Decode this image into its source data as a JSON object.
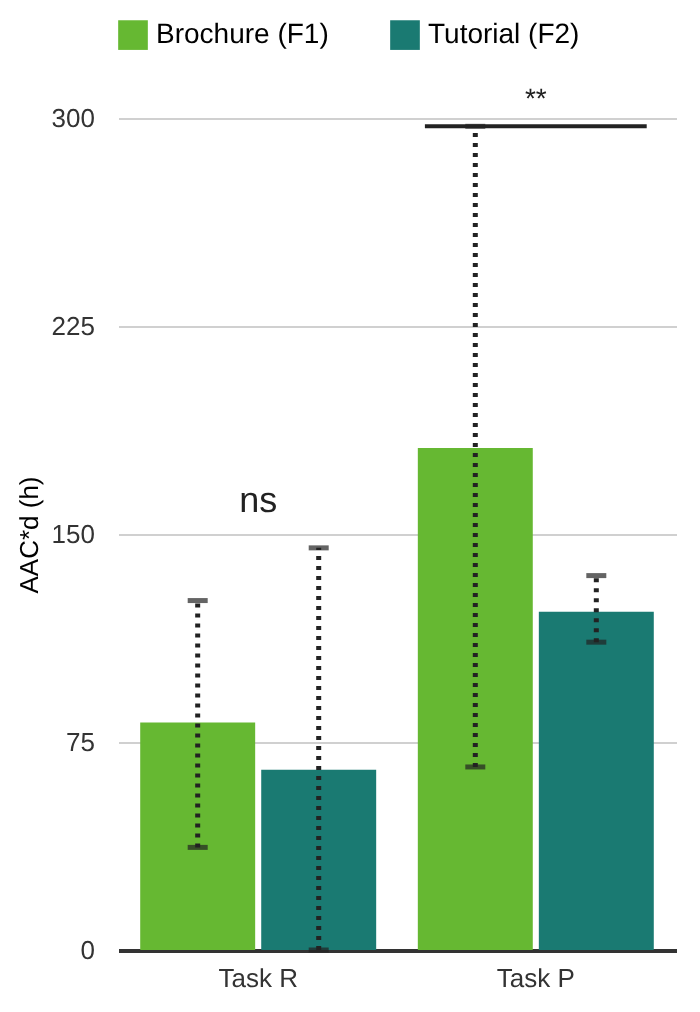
{
  "chart_data": {
    "type": "bar",
    "ylabel": "AAC*d (h)",
    "categories": [
      "Task R",
      "Task P"
    ],
    "series": [
      {
        "name": "Brochure (F1)",
        "color": "#66b832",
        "values": [
          82,
          181
        ],
        "errors": [
          [
            37,
            126
          ],
          [
            66,
            297
          ]
        ]
      },
      {
        "name": "Tutorial (F2)",
        "color": "#1a7a72",
        "values": [
          65,
          122
        ],
        "errors": [
          [
            0,
            145
          ],
          [
            111,
            135
          ]
        ]
      }
    ],
    "ylim": [
      0,
      300
    ],
    "yticks": [
      0,
      75,
      150,
      225,
      300
    ],
    "grid": "y",
    "legend": "top",
    "line_style": "dotted",
    "annotations": [
      "ns",
      "**"
    ]
  }
}
